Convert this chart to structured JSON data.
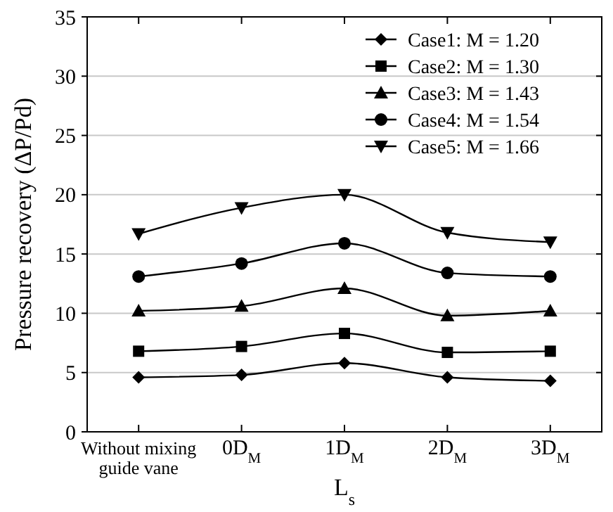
{
  "chart_data": {
    "type": "line",
    "xlabel": "L$_{s}$",
    "ylabel": "Pressure recovery (ΔP/Pd)",
    "categories": [
      "Without mixing guide vane",
      "0D$_{M}$",
      "1D$_{M}$",
      "2D$_{M}$",
      "3D$_{M}$"
    ],
    "ylim": [
      0,
      35
    ],
    "yticks": [
      0,
      5,
      10,
      15,
      20,
      25,
      30,
      35
    ],
    "grid": "y",
    "legend": "top right",
    "series": [
      {
        "name": "Case1: M = 1.20",
        "color": "#000000",
        "marker": "diamond",
        "values": [
          4.6,
          4.8,
          5.8,
          4.6,
          4.3
        ]
      },
      {
        "name": "Case2: M = 1.30",
        "color": "#000000",
        "marker": "square",
        "values": [
          6.8,
          7.2,
          8.3,
          6.7,
          6.8
        ]
      },
      {
        "name": "Case3: M = 1.43",
        "color": "#000000",
        "marker": "triangle",
        "values": [
          10.2,
          10.6,
          12.1,
          9.8,
          10.2
        ]
      },
      {
        "name": "Case4: M = 1.54",
        "color": "#000000",
        "marker": "circle",
        "values": [
          13.1,
          14.2,
          15.9,
          13.4,
          13.1
        ]
      },
      {
        "name": "Case5: M = 1.66",
        "color": "#000000",
        "marker": "triangle-down",
        "values": [
          16.7,
          18.9,
          20.0,
          16.8,
          16.0
        ]
      }
    ]
  }
}
